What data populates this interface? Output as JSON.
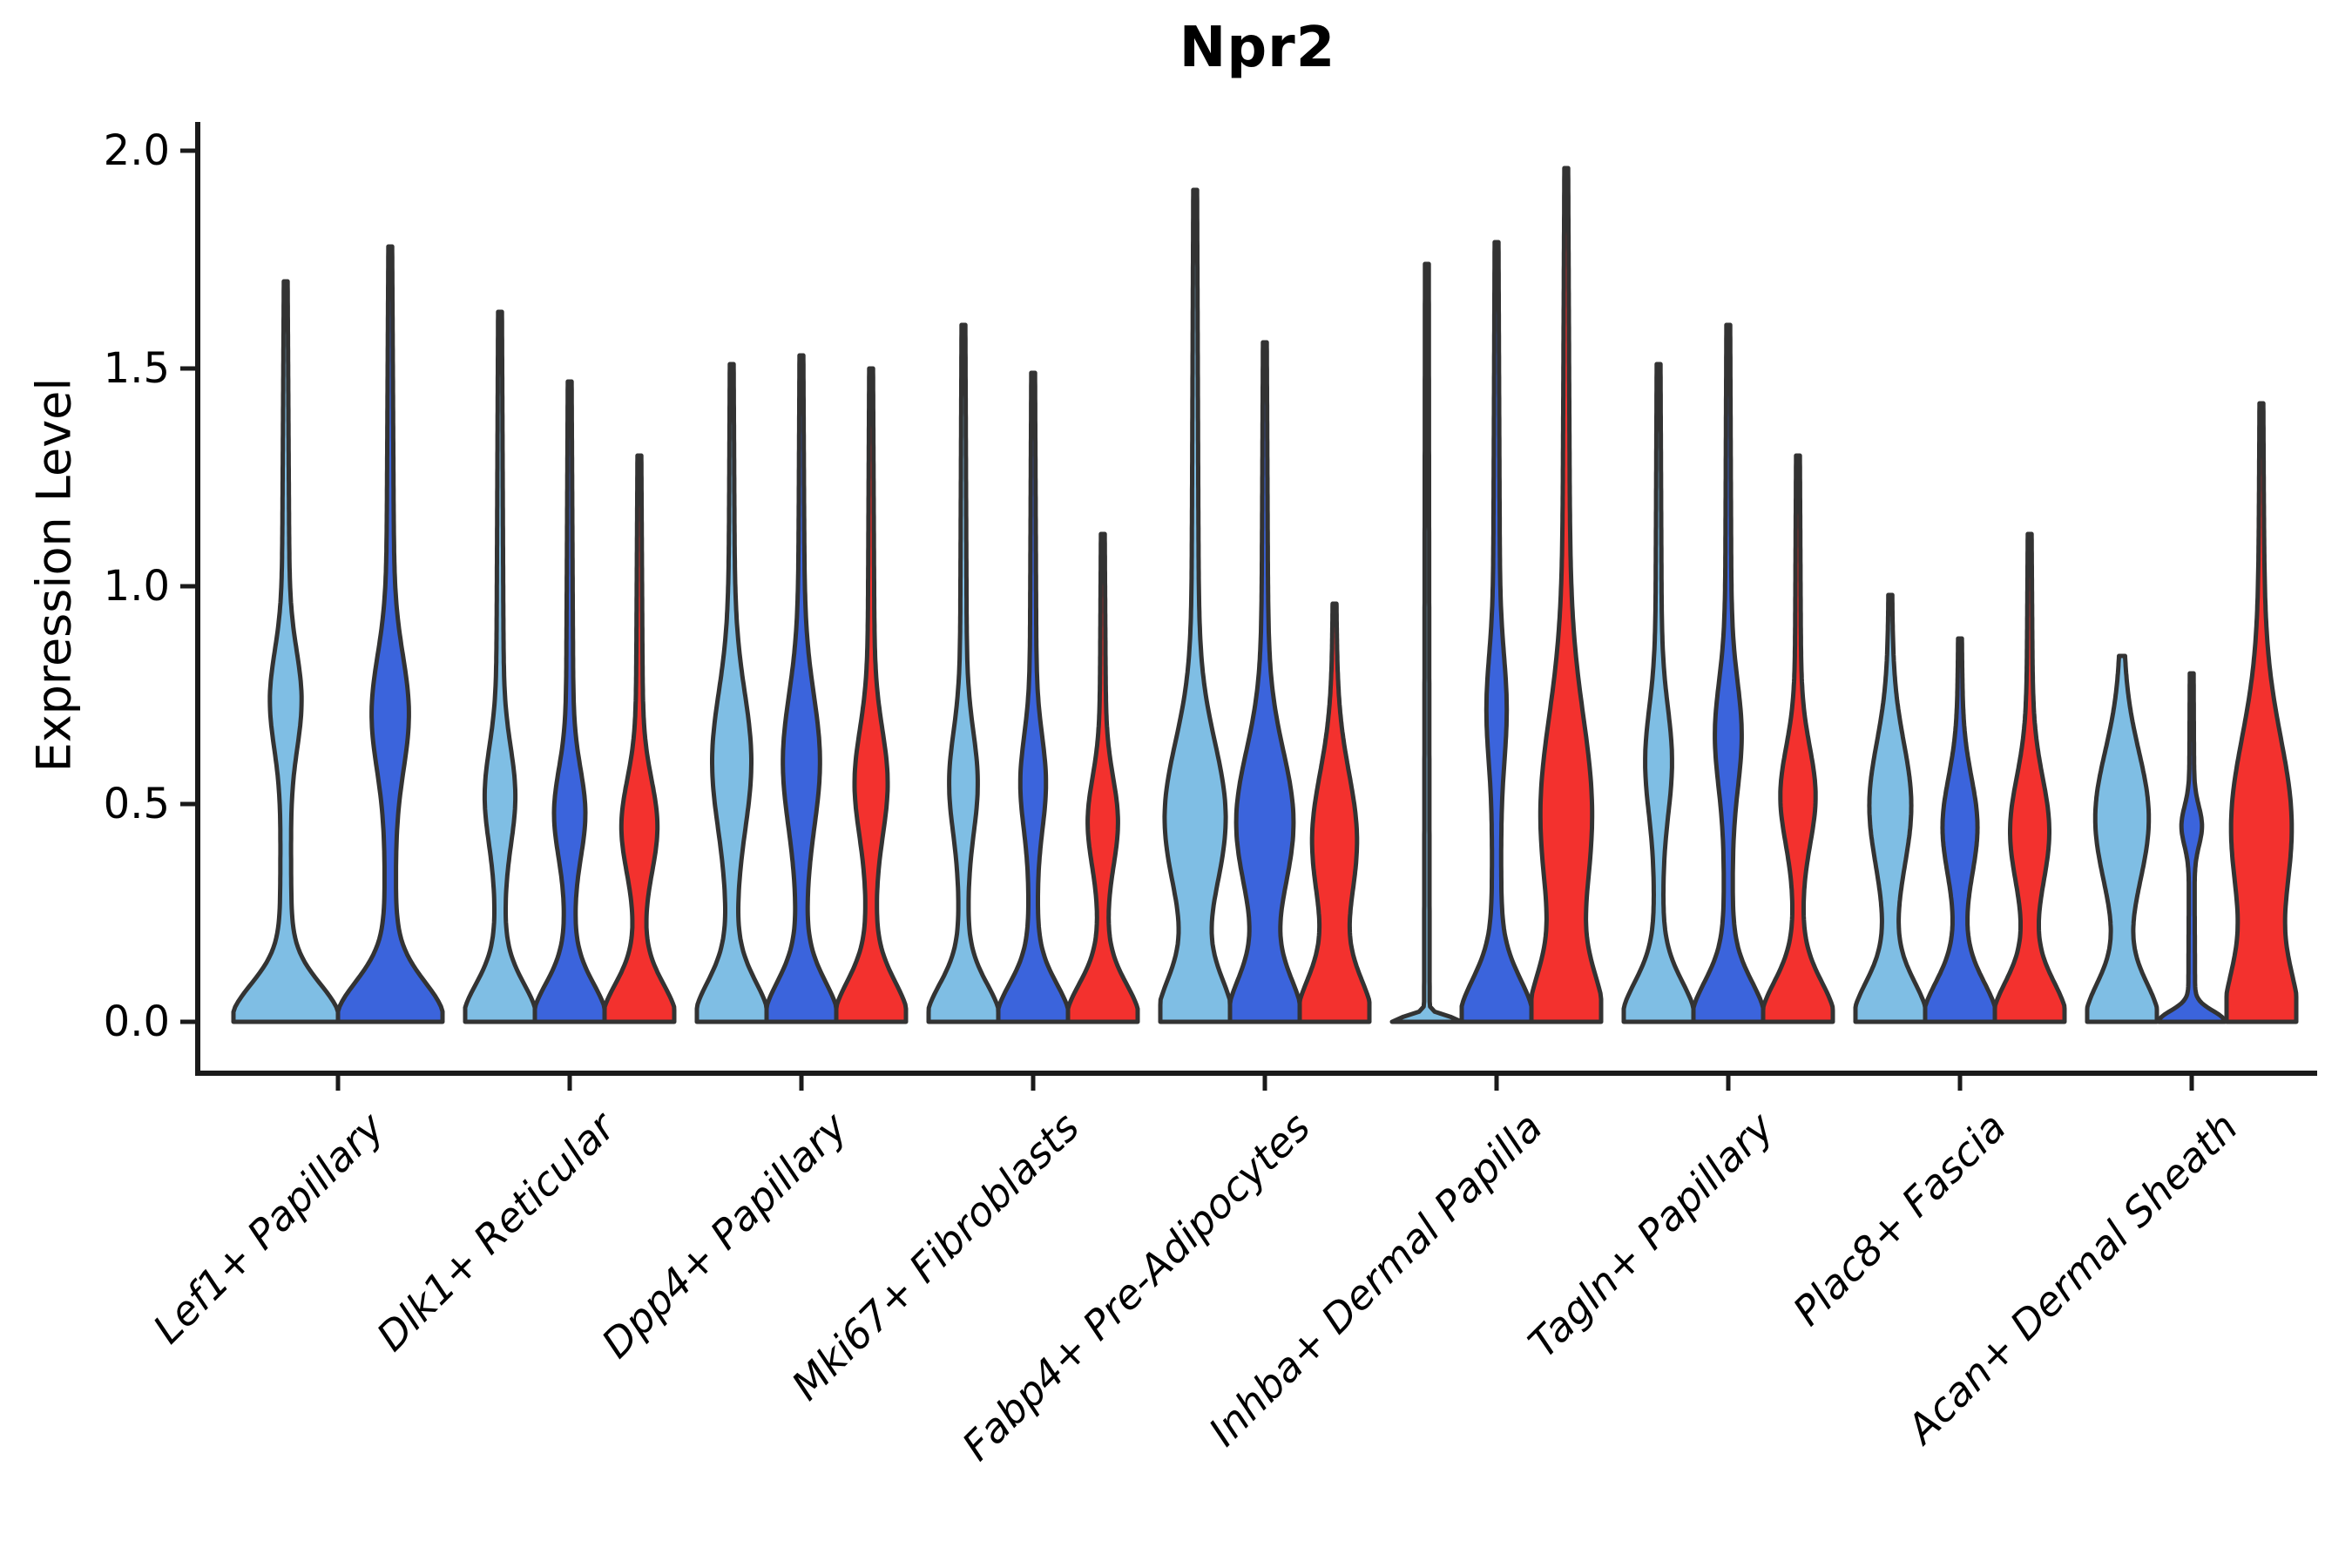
{
  "title": "Npr2",
  "axes": {
    "ylabel": "Expression Level",
    "y_tick_labels": [
      "0.0",
      "0.5",
      "1.0",
      "1.5",
      "2.0"
    ]
  },
  "chart_data": {
    "type": "violin",
    "title": "Npr2",
    "xlabel": "",
    "ylabel": "Expression Level",
    "ylim": [
      -0.13,
      2.07
    ],
    "y_ticks": [
      0.0,
      0.5,
      1.0,
      1.5,
      2.0
    ],
    "grid": false,
    "legend": "none",
    "categories": [
      "Lef1+ Papillary",
      "Dlk1+ Reticular",
      "Dpp4+ Papillary",
      "Mki67+ Fibroblasts",
      "Fabp4+ Pre-Adipocytes",
      "Inhba+ Dermal Papilla",
      "Tagln+ Papillary",
      "Plac8+ Fascia",
      "Acan+ Dermal Sheath"
    ],
    "series": [
      "light_blue",
      "dark_blue",
      "red"
    ],
    "colors": {
      "light_blue": "#7FBEE4",
      "dark_blue": "#3B64DC",
      "red": "#F3312E",
      "outline": "#333333",
      "axis": "#1a1a1a"
    },
    "note": "Each violin is widest at expression 0 (flat base), has a thin stem, an optional mid bulge (lens), and a narrow spike up to max_expression. bulge width is a fraction of the violin half-slot.",
    "groups": [
      {
        "category": "Lef1+ Papillary",
        "violins": [
          {
            "series": "light_blue",
            "max_expression": 1.7,
            "bulge": {
              "center": 0.74,
              "sigma": 0.11,
              "width": 0.22
            },
            "base": {
              "width": 0.92,
              "sigma": 0.085
            },
            "stem_width": 0.12
          },
          {
            "series": "dark_blue",
            "max_expression": 1.78,
            "bulge": {
              "center": 0.71,
              "sigma": 0.13,
              "width": 0.27
            },
            "base": {
              "width": 0.92,
              "sigma": 0.09
            },
            "stem_width": 0.12
          }
        ]
      },
      {
        "category": "Dlk1+ Reticular",
        "violins": [
          {
            "series": "light_blue",
            "max_expression": 1.63,
            "bulge": {
              "center": 0.52,
              "sigma": 0.11,
              "width": 0.32
            },
            "base": {
              "width": 0.92,
              "sigma": 0.085
            },
            "stem_width": 0.15
          },
          {
            "series": "dark_blue",
            "max_expression": 1.47,
            "bulge": {
              "center": 0.48,
              "sigma": 0.1,
              "width": 0.33
            },
            "base": {
              "width": 0.92,
              "sigma": 0.085
            },
            "stem_width": 0.15
          },
          {
            "series": "red",
            "max_expression": 1.3,
            "bulge": {
              "center": 0.45,
              "sigma": 0.105,
              "width": 0.4
            },
            "base": {
              "width": 0.92,
              "sigma": 0.085
            },
            "stem_width": 0.15
          }
        ]
      },
      {
        "category": "Dpp4+ Papillary",
        "violins": [
          {
            "series": "light_blue",
            "max_expression": 1.51,
            "bulge": {
              "center": 0.6,
              "sigma": 0.155,
              "width": 0.45
            },
            "base": {
              "width": 0.92,
              "sigma": 0.09
            },
            "stem_width": 0.15
          },
          {
            "series": "dark_blue",
            "max_expression": 1.53,
            "bulge": {
              "center": 0.6,
              "sigma": 0.15,
              "width": 0.42
            },
            "base": {
              "width": 0.92,
              "sigma": 0.09
            },
            "stem_width": 0.15
          },
          {
            "series": "red",
            "max_expression": 1.5,
            "bulge": {
              "center": 0.55,
              "sigma": 0.12,
              "width": 0.36
            },
            "base": {
              "width": 0.92,
              "sigma": 0.09
            },
            "stem_width": 0.15
          }
        ]
      },
      {
        "category": "Mki67+ Fibroblasts",
        "violins": [
          {
            "series": "light_blue",
            "max_expression": 1.6,
            "bulge": {
              "center": 0.55,
              "sigma": 0.115,
              "width": 0.3
            },
            "base": {
              "width": 0.92,
              "sigma": 0.085
            },
            "stem_width": 0.14
          },
          {
            "series": "dark_blue",
            "max_expression": 1.49,
            "bulge": {
              "center": 0.55,
              "sigma": 0.105,
              "width": 0.26
            },
            "base": {
              "width": 0.92,
              "sigma": 0.085
            },
            "stem_width": 0.14
          },
          {
            "series": "red",
            "max_expression": 1.12,
            "bulge": {
              "center": 0.46,
              "sigma": 0.1,
              "width": 0.33
            },
            "base": {
              "width": 0.92,
              "sigma": 0.085
            },
            "stem_width": 0.14
          }
        ]
      },
      {
        "category": "Fabp4+ Pre-Adipocytes",
        "violins": [
          {
            "series": "light_blue",
            "max_expression": 1.91,
            "bulge": {
              "center": 0.47,
              "sigma": 0.17,
              "width": 0.75
            },
            "base": {
              "width": 0.92,
              "sigma": 0.1
            },
            "stem_width": 0.15
          },
          {
            "series": "dark_blue",
            "max_expression": 1.56,
            "bulge": {
              "center": 0.46,
              "sigma": 0.16,
              "width": 0.7
            },
            "base": {
              "width": 0.92,
              "sigma": 0.1
            },
            "stem_width": 0.15
          },
          {
            "series": "red",
            "max_expression": 0.96,
            "bulge": {
              "center": 0.42,
              "sigma": 0.15,
              "width": 0.53
            },
            "base": {
              "width": 0.92,
              "sigma": 0.1
            },
            "stem_width": 0.16
          }
        ]
      },
      {
        "category": "Inhba+ Dermal Papilla",
        "violins": [
          {
            "series": "light_blue",
            "max_expression": 1.74,
            "bulge": null,
            "base": {
              "width": 0.95,
              "sigma": 0.012
            },
            "stem_width": 0.08
          },
          {
            "series": "dark_blue",
            "max_expression": 1.79,
            "bulge": {
              "center": 0.72,
              "sigma": 0.12,
              "width": 0.18
            },
            "base": {
              "width": 0.92,
              "sigma": 0.095
            },
            "stem_width": 0.15
          },
          {
            "series": "red",
            "max_expression": 1.96,
            "bulge": {
              "center": 0.48,
              "sigma": 0.22,
              "width": 0.6
            },
            "base": {
              "width": 0.85,
              "sigma": 0.11
            },
            "stem_width": 0.17
          }
        ]
      },
      {
        "category": "Tagln+ Papillary",
        "violins": [
          {
            "series": "light_blue",
            "max_expression": 1.51,
            "bulge": {
              "center": 0.6,
              "sigma": 0.12,
              "width": 0.28
            },
            "base": {
              "width": 0.92,
              "sigma": 0.09
            },
            "stem_width": 0.14
          },
          {
            "series": "dark_blue",
            "max_expression": 1.6,
            "bulge": {
              "center": 0.66,
              "sigma": 0.12,
              "width": 0.28
            },
            "base": {
              "width": 0.92,
              "sigma": 0.09
            },
            "stem_width": 0.14
          },
          {
            "series": "red",
            "max_expression": 1.3,
            "bulge": {
              "center": 0.52,
              "sigma": 0.11,
              "width": 0.4
            },
            "base": {
              "width": 0.92,
              "sigma": 0.09
            },
            "stem_width": 0.14
          }
        ]
      },
      {
        "category": "Plac8+ Fascia",
        "violins": [
          {
            "series": "light_blue",
            "max_expression": 0.98,
            "bulge": {
              "center": 0.5,
              "sigma": 0.14,
              "width": 0.5
            },
            "base": {
              "width": 0.92,
              "sigma": 0.09
            },
            "stem_width": 0.15
          },
          {
            "series": "dark_blue",
            "max_expression": 0.88,
            "bulge": {
              "center": 0.45,
              "sigma": 0.11,
              "width": 0.4
            },
            "base": {
              "width": 0.92,
              "sigma": 0.09
            },
            "stem_width": 0.15
          },
          {
            "series": "red",
            "max_expression": 1.12,
            "bulge": {
              "center": 0.44,
              "sigma": 0.12,
              "width": 0.45
            },
            "base": {
              "width": 0.92,
              "sigma": 0.09
            },
            "stem_width": 0.15
          }
        ]
      },
      {
        "category": "Acan+ Dermal Sheath",
        "violins": [
          {
            "series": "light_blue",
            "max_expression": 0.84,
            "bulge": {
              "center": 0.47,
              "sigma": 0.15,
              "width": 0.68
            },
            "base": {
              "width": 0.92,
              "sigma": 0.09
            },
            "stem_width": 0.13
          },
          {
            "series": "dark_blue",
            "max_expression": 0.8,
            "bulge": {
              "center": 0.45,
              "sigma": 0.045,
              "width": 0.22
            },
            "base": {
              "width": 0.85,
              "sigma": 0.025
            },
            "stem_width": 0.1
          },
          {
            "series": "red",
            "max_expression": 1.42,
            "bulge": {
              "center": 0.45,
              "sigma": 0.2,
              "width": 0.75
            },
            "base": {
              "width": 0.85,
              "sigma": 0.12
            },
            "stem_width": 0.15
          }
        ]
      }
    ]
  }
}
